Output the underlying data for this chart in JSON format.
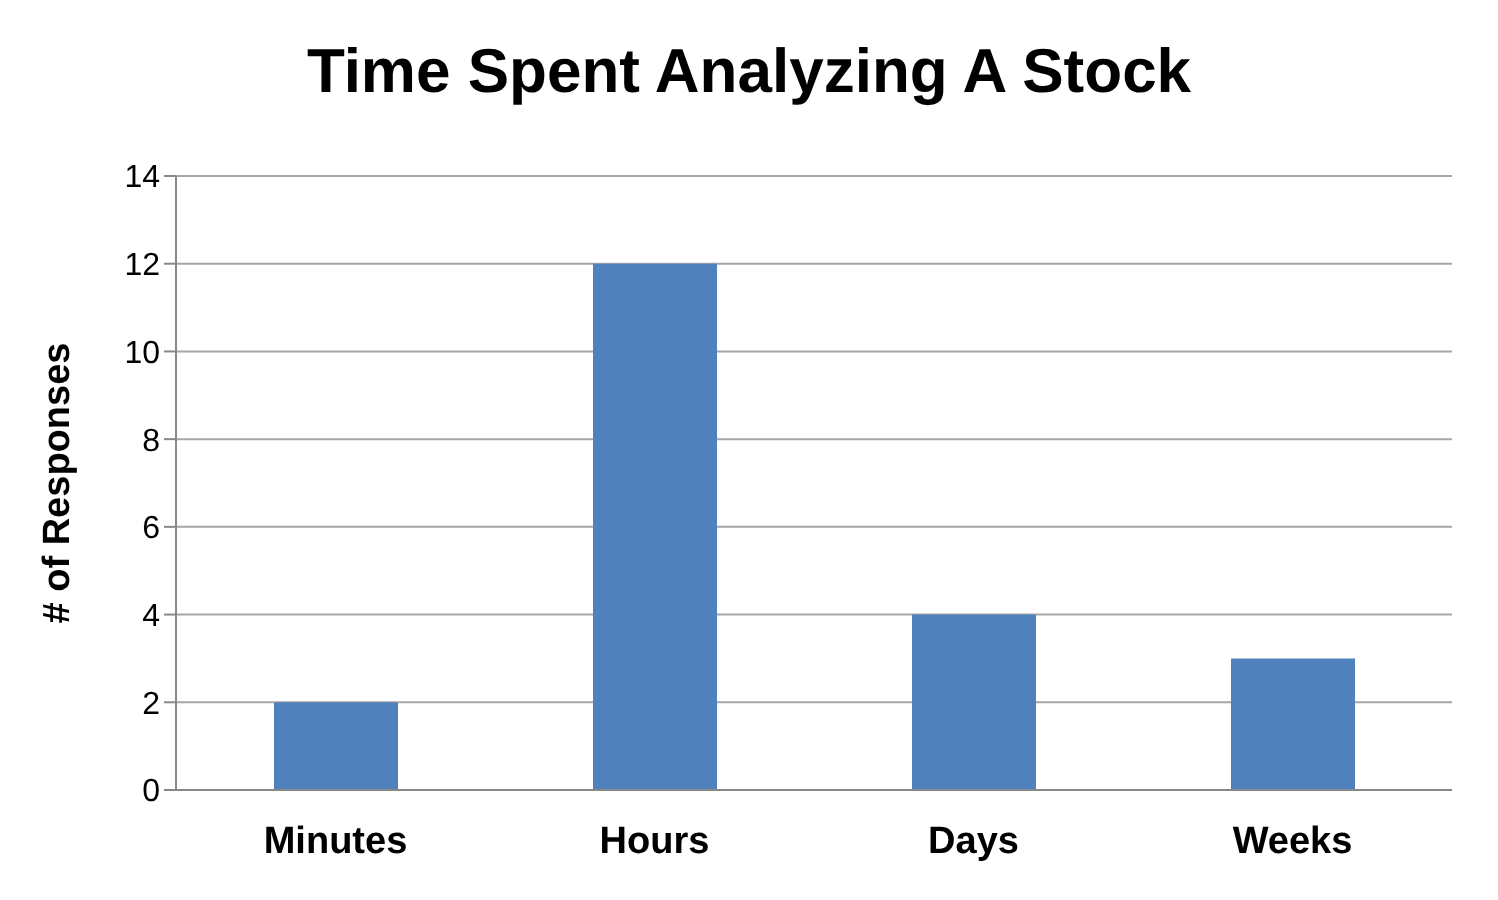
{
  "chart_data": {
    "type": "bar",
    "title": "Time Spent Analyzing A Stock",
    "ylabel": "# of Responses",
    "categories": [
      "Minutes",
      "Hours",
      "Days",
      "Weeks"
    ],
    "values": [
      2,
      12,
      4,
      3
    ],
    "color": "#4f81bd",
    "ylim": [
      0,
      14
    ],
    "yticks": [
      0,
      2,
      4,
      6,
      8,
      10,
      12,
      14
    ],
    "grid": "y"
  }
}
